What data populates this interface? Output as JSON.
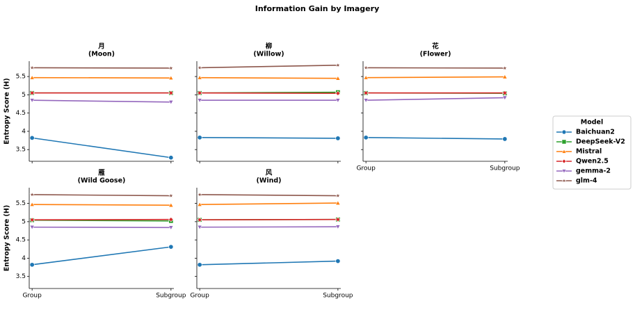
{
  "title": "Information Gain by Imagery",
  "legend": {
    "title": "Model"
  },
  "chart_data": [
    {
      "type": "line",
      "title": "月",
      "subtitle": "(Moon)",
      "y_label": "Entropy Score (H)",
      "ylim": [
        3.18,
        5.92
      ],
      "yticks": [
        3.5,
        4.0,
        4.5,
        5.0,
        5.5
      ],
      "series": [
        {
          "name": "Baichuan2",
          "color": "#1f77b4",
          "marker": "o",
          "values": [
            3.82,
            3.28
          ]
        },
        {
          "name": "DeepSeek-V2",
          "color": "#2ca02c",
          "marker": "s",
          "values": [
            5.05,
            5.05
          ]
        },
        {
          "name": "Mistral",
          "color": "#ff7f0e",
          "marker": "^",
          "values": [
            5.47,
            5.46
          ]
        },
        {
          "name": "Qwen2.5",
          "color": "#d62728",
          "marker": "D",
          "values": [
            5.05,
            5.05
          ]
        },
        {
          "name": "gemma-2",
          "color": "#9467bd",
          "marker": "v",
          "values": [
            4.85,
            4.8
          ]
        },
        {
          "name": "glm-4",
          "color": "#8c564b",
          "marker": "*",
          "values": [
            5.74,
            5.73
          ]
        }
      ]
    },
    {
      "type": "line",
      "title": "柳",
      "subtitle": "(Willow)",
      "ylim": [
        3.18,
        5.92
      ],
      "series": [
        {
          "name": "Baichuan2",
          "color": "#1f77b4",
          "marker": "o",
          "values": [
            3.83,
            3.81
          ]
        },
        {
          "name": "DeepSeek-V2",
          "color": "#2ca02c",
          "marker": "s",
          "values": [
            5.05,
            5.07
          ]
        },
        {
          "name": "Mistral",
          "color": "#ff7f0e",
          "marker": "^",
          "values": [
            5.47,
            5.45
          ]
        },
        {
          "name": "Qwen2.5",
          "color": "#d62728",
          "marker": "D",
          "values": [
            5.05,
            5.04
          ]
        },
        {
          "name": "gemma-2",
          "color": "#9467bd",
          "marker": "v",
          "values": [
            4.85,
            4.85
          ]
        },
        {
          "name": "glm-4",
          "color": "#8c564b",
          "marker": "*",
          "values": [
            5.74,
            5.81
          ]
        }
      ]
    },
    {
      "type": "line",
      "title": "花",
      "subtitle": "(Flower)",
      "ylim": [
        3.18,
        5.92
      ],
      "categories": [
        "Group",
        "Subgroup"
      ],
      "series": [
        {
          "name": "Baichuan2",
          "color": "#1f77b4",
          "marker": "o",
          "values": [
            3.83,
            3.79
          ]
        },
        {
          "name": "DeepSeek-V2",
          "color": "#2ca02c",
          "marker": "s",
          "values": [
            5.05,
            5.04
          ]
        },
        {
          "name": "Mistral",
          "color": "#ff7f0e",
          "marker": "^",
          "values": [
            5.47,
            5.49
          ]
        },
        {
          "name": "Qwen2.5",
          "color": "#d62728",
          "marker": "D",
          "values": [
            5.05,
            5.05
          ]
        },
        {
          "name": "gemma-2",
          "color": "#9467bd",
          "marker": "v",
          "values": [
            4.85,
            4.92
          ]
        },
        {
          "name": "glm-4",
          "color": "#8c564b",
          "marker": "*",
          "values": [
            5.74,
            5.73
          ]
        }
      ]
    },
    {
      "type": "line",
      "title": "雁",
      "subtitle": "(Wild Goose)",
      "y_label": "Entropy Score (H)",
      "ylim": [
        3.17,
        5.93
      ],
      "yticks": [
        3.5,
        4.0,
        4.5,
        5.0,
        5.5
      ],
      "categories": [
        "Group",
        "Subgroup"
      ],
      "series": [
        {
          "name": "Baichuan2",
          "color": "#1f77b4",
          "marker": "o",
          "values": [
            3.82,
            4.31
          ]
        },
        {
          "name": "DeepSeek-V2",
          "color": "#2ca02c",
          "marker": "s",
          "values": [
            5.04,
            5.02
          ]
        },
        {
          "name": "Mistral",
          "color": "#ff7f0e",
          "marker": "^",
          "values": [
            5.47,
            5.45
          ]
        },
        {
          "name": "Qwen2.5",
          "color": "#d62728",
          "marker": "D",
          "values": [
            5.05,
            5.06
          ]
        },
        {
          "name": "gemma-2",
          "color": "#9467bd",
          "marker": "v",
          "values": [
            4.85,
            4.84
          ]
        },
        {
          "name": "glm-4",
          "color": "#8c564b",
          "marker": "*",
          "values": [
            5.74,
            5.71
          ]
        }
      ]
    },
    {
      "type": "line",
      "title": "风",
      "subtitle": "(Wind)",
      "ylim": [
        3.17,
        5.93
      ],
      "categories": [
        "Group",
        "Subgroup"
      ],
      "series": [
        {
          "name": "Baichuan2",
          "color": "#1f77b4",
          "marker": "o",
          "values": [
            3.82,
            3.92
          ]
        },
        {
          "name": "DeepSeek-V2",
          "color": "#2ca02c",
          "marker": "s",
          "values": [
            5.05,
            5.06
          ]
        },
        {
          "name": "Mistral",
          "color": "#ff7f0e",
          "marker": "^",
          "values": [
            5.47,
            5.51
          ]
        },
        {
          "name": "Qwen2.5",
          "color": "#d62728",
          "marker": "D",
          "values": [
            5.05,
            5.06
          ]
        },
        {
          "name": "gemma-2",
          "color": "#9467bd",
          "marker": "v",
          "values": [
            4.85,
            4.86
          ]
        },
        {
          "name": "glm-4",
          "color": "#8c564b",
          "marker": "*",
          "values": [
            5.74,
            5.71
          ]
        }
      ]
    }
  ]
}
